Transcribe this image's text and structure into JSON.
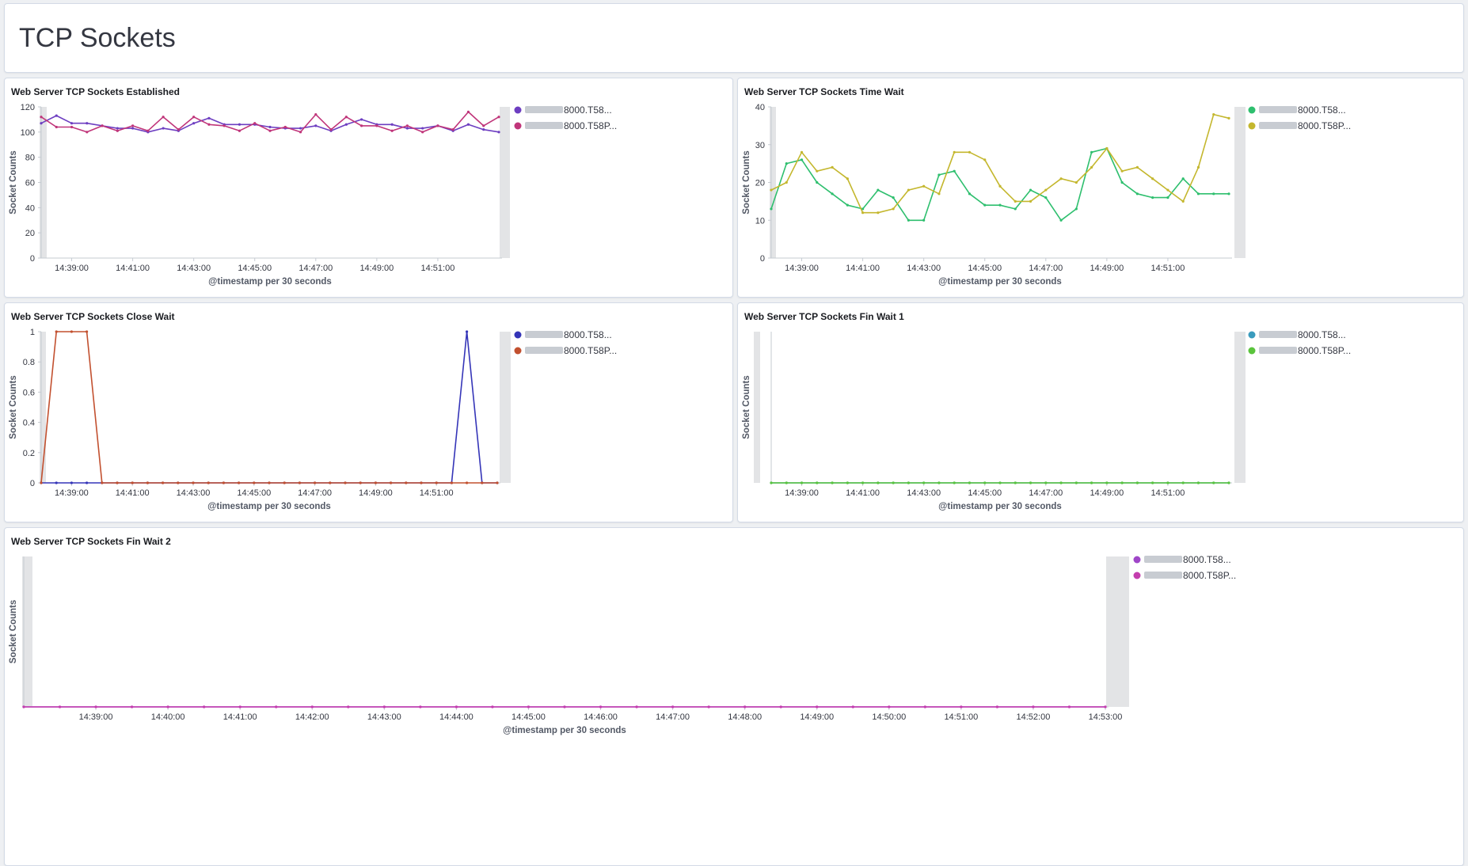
{
  "dashboard": {
    "title": "TCP Sockets"
  },
  "panels": {
    "established": {
      "title": "Web Server TCP Sockets Established",
      "ylabel": "Socket Counts",
      "xlabel": "@timestamp per 30 seconds",
      "legend": [
        "8000.T58...",
        "8000.T58P..."
      ]
    },
    "time_wait": {
      "title": "Web Server TCP Sockets Time Wait",
      "ylabel": "Socket Counts",
      "xlabel": "@timestamp per 30 seconds",
      "legend": [
        "8000.T58...",
        "8000.T58P..."
      ]
    },
    "close_wait": {
      "title": "Web Server TCP Sockets Close Wait",
      "ylabel": "Socket Counts",
      "xlabel": "@timestamp per 30 seconds",
      "legend": [
        "8000.T58...",
        "8000.T58P..."
      ]
    },
    "fin_wait_1": {
      "title": "Web Server TCP Sockets Fin Wait 1",
      "ylabel": "Socket Counts",
      "xlabel": "@timestamp per 30 seconds",
      "legend": [
        "8000.T58...",
        "8000.T58P..."
      ]
    },
    "fin_wait_2": {
      "title": "Web Server TCP Sockets Fin Wait 2",
      "ylabel": "Socket Counts",
      "xlabel": "@timestamp per 30 seconds",
      "legend": [
        "8000.T58...",
        "8000.T58P..."
      ]
    }
  },
  "chart_data": [
    {
      "id": "established",
      "type": "line",
      "title": "Web Server TCP Sockets Established",
      "xlabel": "@timestamp per 30 seconds",
      "ylabel": "Socket Counts",
      "ylim": [
        0,
        120
      ],
      "yticks": [
        0,
        20,
        40,
        60,
        80,
        100,
        120
      ],
      "tick_labels": [
        "14:39:00",
        "14:41:00",
        "14:43:00",
        "14:45:00",
        "14:47:00",
        "14:49:00",
        "14:51:00"
      ],
      "tick_positions": [
        2,
        6,
        10,
        14,
        18,
        22,
        26
      ],
      "series": [
        {
          "name": "8000.T58...",
          "color": "#6d3ec1",
          "values": [
            107,
            113,
            107,
            107,
            105,
            103,
            103,
            100,
            103,
            101,
            107,
            111,
            106,
            106,
            106,
            104,
            103,
            103,
            105,
            101,
            106,
            110,
            106,
            106,
            103,
            103,
            105,
            101,
            106,
            102,
            100
          ]
        },
        {
          "name": "8000.T58P...",
          "color": "#c0357a",
          "values": [
            112,
            104,
            104,
            100,
            105,
            101,
            105,
            101,
            112,
            102,
            112,
            106,
            105,
            101,
            107,
            101,
            104,
            100,
            114,
            102,
            112,
            105,
            105,
            101,
            105,
            100,
            105,
            102,
            116,
            105,
            112
          ]
        }
      ]
    },
    {
      "id": "time_wait",
      "type": "line",
      "title": "Web Server TCP Sockets Time Wait",
      "xlabel": "@timestamp per 30 seconds",
      "ylabel": "Socket Counts",
      "ylim": [
        0,
        40
      ],
      "yticks": [
        0,
        10,
        20,
        30,
        40
      ],
      "tick_labels": [
        "14:39:00",
        "14:41:00",
        "14:43:00",
        "14:45:00",
        "14:47:00",
        "14:49:00",
        "14:51:00"
      ],
      "tick_positions": [
        2,
        6,
        10,
        14,
        18,
        22,
        26
      ],
      "series": [
        {
          "name": "8000.T58...",
          "color": "#2ebf6e",
          "values": [
            13,
            25,
            26,
            20,
            17,
            14,
            13,
            18,
            16,
            10,
            10,
            22,
            23,
            17,
            14,
            14,
            13,
            18,
            16,
            10,
            13,
            28,
            29,
            20,
            17,
            16,
            16,
            21,
            17,
            17,
            17
          ]
        },
        {
          "name": "8000.T58P...",
          "color": "#c4b72e",
          "values": [
            18,
            20,
            28,
            23,
            24,
            21,
            12,
            12,
            13,
            18,
            19,
            17,
            28,
            28,
            26,
            19,
            15,
            15,
            18,
            21,
            20,
            24,
            29,
            23,
            24,
            21,
            18,
            15,
            24,
            38,
            37
          ]
        }
      ]
    },
    {
      "id": "close_wait",
      "type": "line",
      "title": "Web Server TCP Sockets Close Wait",
      "xlabel": "@timestamp per 30 seconds",
      "ylabel": "Socket Counts",
      "ylim": [
        0,
        1
      ],
      "yticks": [
        0,
        0.2,
        0.4,
        0.6,
        0.8,
        1
      ],
      "tick_labels": [
        "14:39:00",
        "14:41:00",
        "14:43:00",
        "14:45:00",
        "14:47:00",
        "14:49:00",
        "14:51:00"
      ],
      "tick_positions": [
        2,
        6,
        10,
        14,
        18,
        22,
        26
      ],
      "series": [
        {
          "name": "8000.T58...",
          "color": "#3535b8",
          "values": [
            0,
            0,
            0,
            0,
            0,
            0,
            0,
            0,
            0,
            0,
            0,
            0,
            0,
            0,
            0,
            0,
            0,
            0,
            0,
            0,
            0,
            0,
            0,
            0,
            0,
            0,
            0,
            0,
            1,
            0,
            0
          ]
        },
        {
          "name": "8000.T58P...",
          "color": "#c2502f",
          "values": [
            0,
            1,
            1,
            1,
            0,
            0,
            0,
            0,
            0,
            0,
            0,
            0,
            0,
            0,
            0,
            0,
            0,
            0,
            0,
            0,
            0,
            0,
            0,
            0,
            0,
            0,
            0,
            0,
            0,
            0,
            0
          ]
        }
      ]
    },
    {
      "id": "fin_wait_1",
      "type": "line",
      "title": "Web Server TCP Sockets Fin Wait 1",
      "xlabel": "@timestamp per 30 seconds",
      "ylabel": "Socket Counts",
      "ylim": [
        0,
        1
      ],
      "yticks": [],
      "tick_labels": [
        "14:39:00",
        "14:41:00",
        "14:43:00",
        "14:45:00",
        "14:47:00",
        "14:49:00",
        "14:51:00"
      ],
      "tick_positions": [
        2,
        6,
        10,
        14,
        18,
        22,
        26
      ],
      "series": [
        {
          "name": "8000.T58...",
          "color": "#3a9bbd",
          "values": [
            0,
            0,
            0,
            0,
            0,
            0,
            0,
            0,
            0,
            0,
            0,
            0,
            0,
            0,
            0,
            0,
            0,
            0,
            0,
            0,
            0,
            0,
            0,
            0,
            0,
            0,
            0,
            0,
            0,
            0,
            0
          ]
        },
        {
          "name": "8000.T58P...",
          "color": "#5ac43c",
          "values": [
            0,
            0,
            0,
            0,
            0,
            0,
            0,
            0,
            0,
            0,
            0,
            0,
            0,
            0,
            0,
            0,
            0,
            0,
            0,
            0,
            0,
            0,
            0,
            0,
            0,
            0,
            0,
            0,
            0,
            0,
            0
          ]
        }
      ]
    },
    {
      "id": "fin_wait_2",
      "type": "line",
      "title": "Web Server TCP Sockets Fin Wait 2",
      "xlabel": "@timestamp per 30 seconds",
      "ylabel": "Socket Counts",
      "ylim": [
        0,
        1
      ],
      "yticks": [],
      "tick_labels": [
        "14:39:00",
        "14:40:00",
        "14:41:00",
        "14:42:00",
        "14:43:00",
        "14:44:00",
        "14:45:00",
        "14:46:00",
        "14:47:00",
        "14:48:00",
        "14:49:00",
        "14:50:00",
        "14:51:00",
        "14:52:00",
        "14:53:00"
      ],
      "tick_positions": [
        2,
        4,
        6,
        8,
        10,
        12,
        14,
        16,
        18,
        20,
        22,
        24,
        26,
        28,
        30
      ],
      "series": [
        {
          "name": "8000.T58...",
          "color": "#9f46c8",
          "values": [
            0,
            0,
            0,
            0,
            0,
            0,
            0,
            0,
            0,
            0,
            0,
            0,
            0,
            0,
            0,
            0,
            0,
            0,
            0,
            0,
            0,
            0,
            0,
            0,
            0,
            0,
            0,
            0,
            0,
            0,
            0
          ]
        },
        {
          "name": "8000.T58P...",
          "color": "#c43eae",
          "values": [
            0,
            0,
            0,
            0,
            0,
            0,
            0,
            0,
            0,
            0,
            0,
            0,
            0,
            0,
            0,
            0,
            0,
            0,
            0,
            0,
            0,
            0,
            0,
            0,
            0,
            0,
            0,
            0,
            0,
            0,
            0
          ]
        }
      ]
    }
  ]
}
